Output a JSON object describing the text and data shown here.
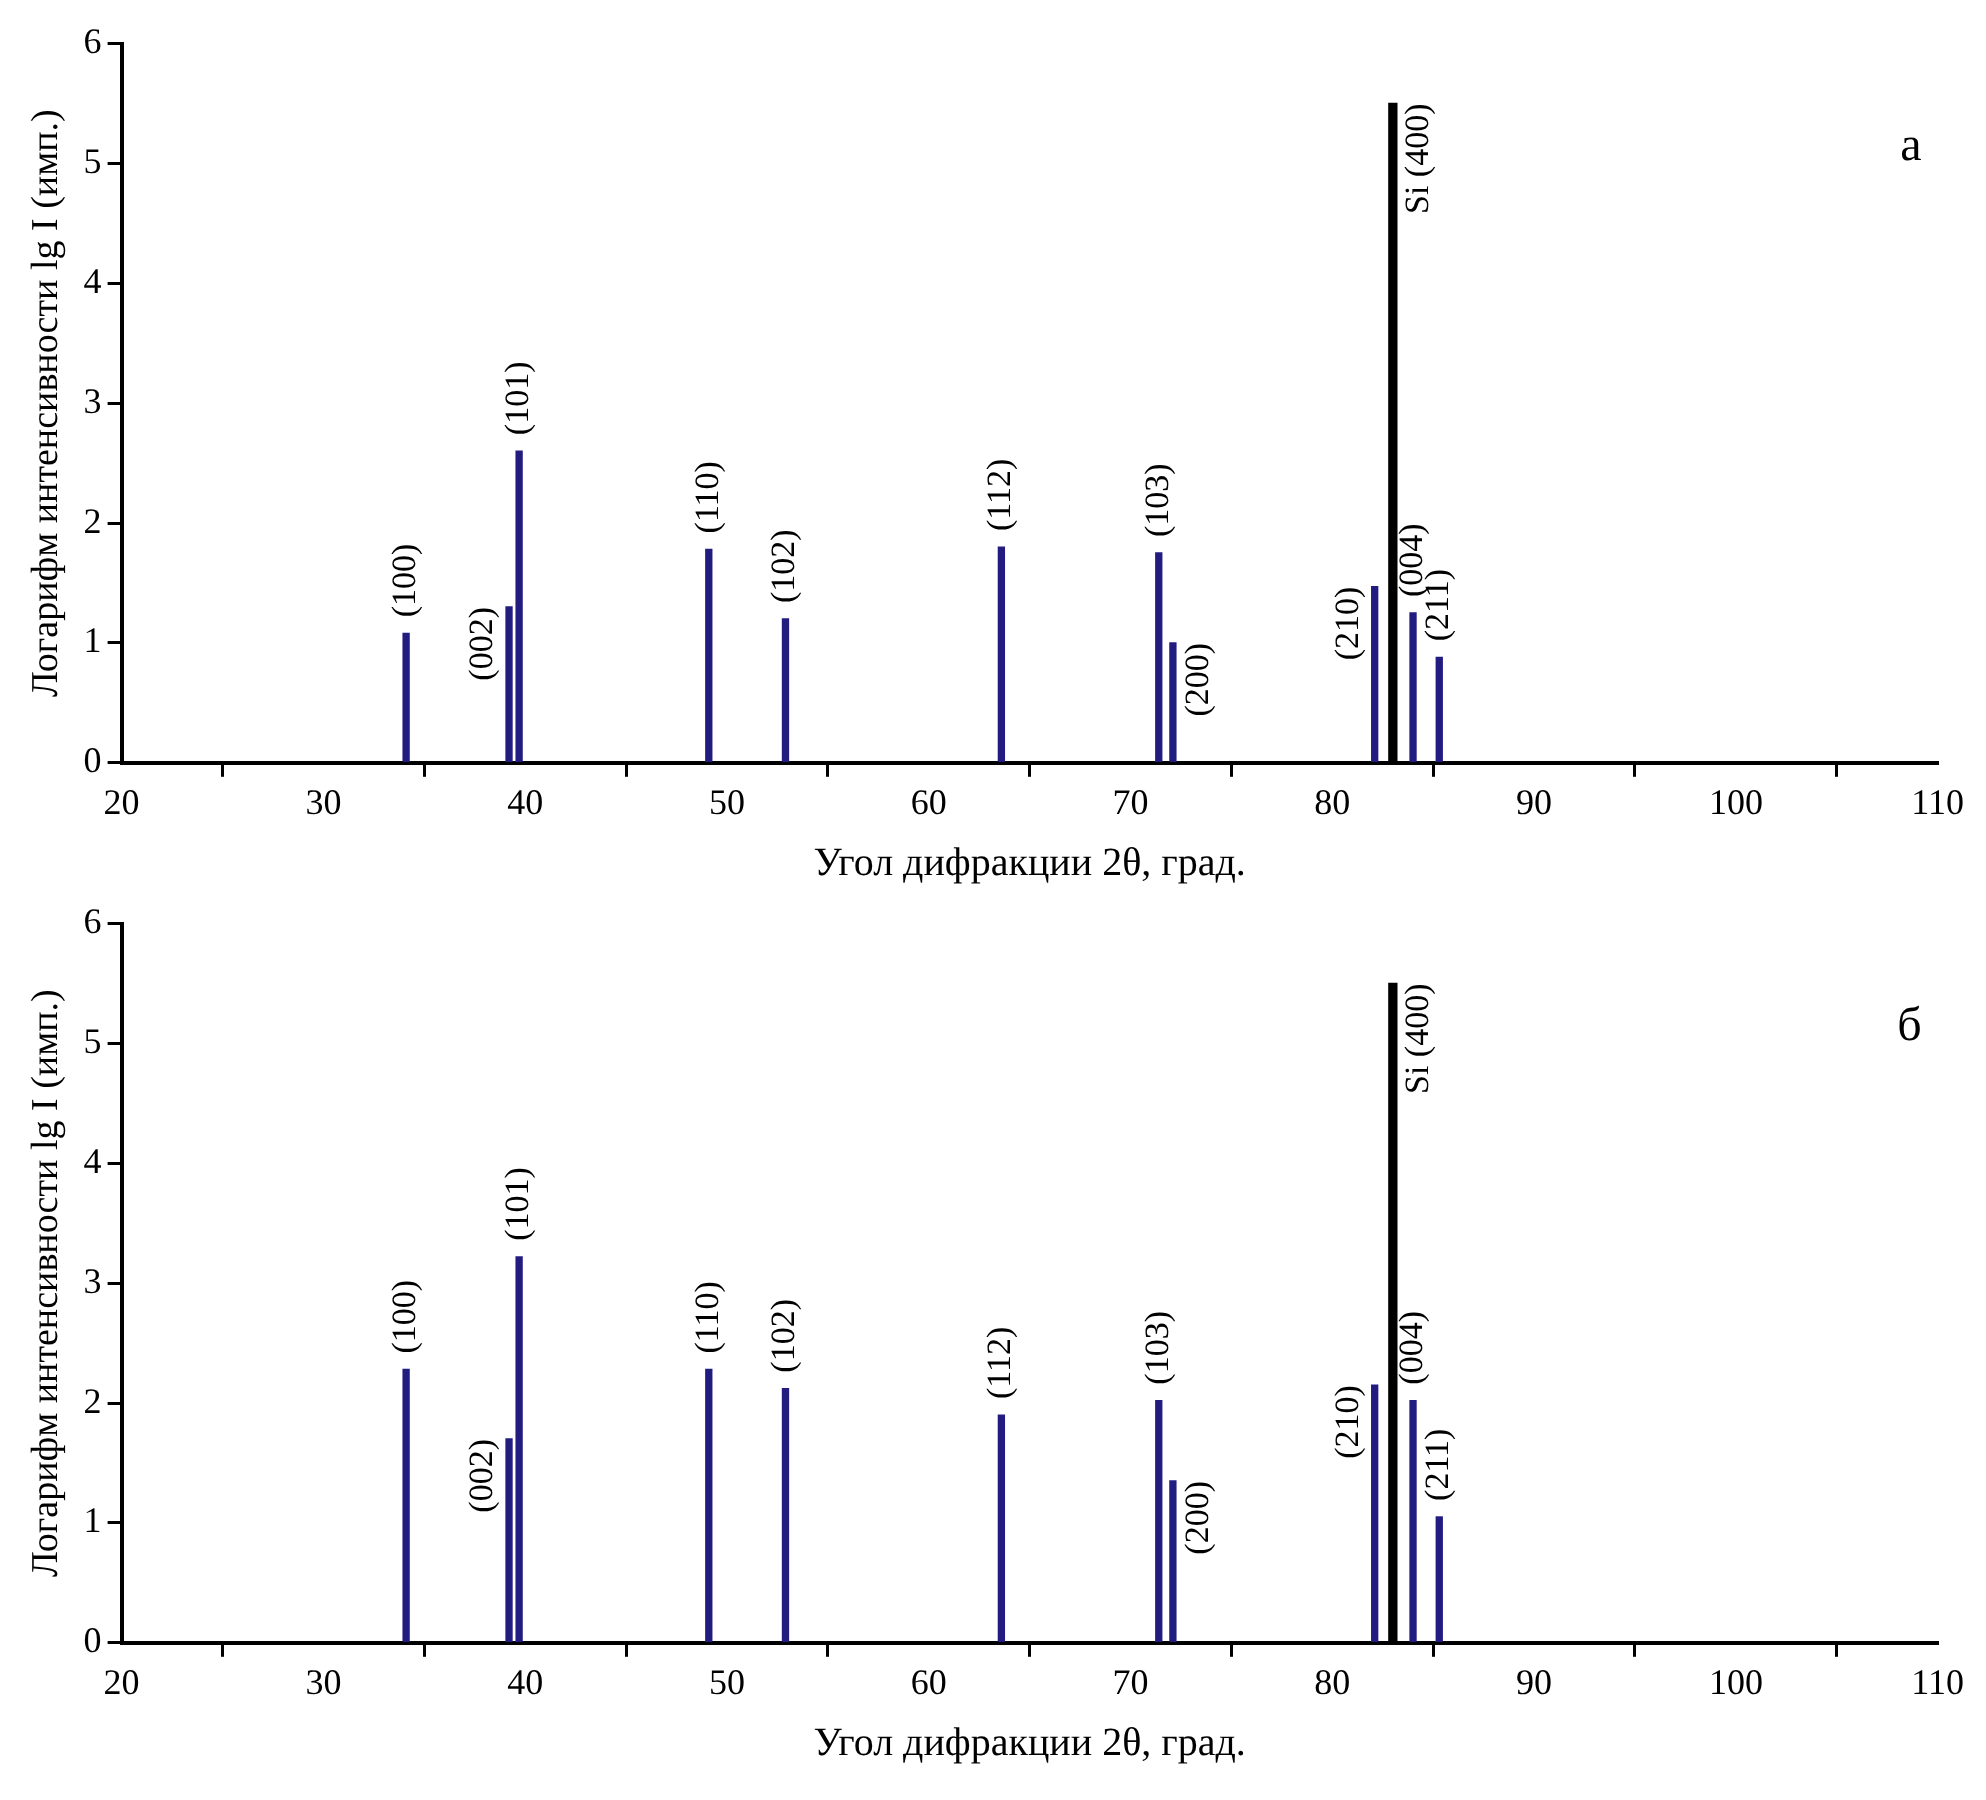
{
  "chart_data": [
    {
      "type": "bar",
      "xlabel": "Угол дифракции 2θ, град.",
      "ylabel": "Логарифм интенсивности lg I (имп.)",
      "xlim": [
        20,
        110
      ],
      "xticks": [
        20,
        30,
        40,
        50,
        60,
        70,
        80,
        90,
        100,
        110
      ],
      "ylim": [
        0,
        6
      ],
      "yticks": [
        0,
        1,
        2,
        3,
        4,
        5,
        6
      ],
      "grid": false,
      "series": [
        {
          "color": "#231c80",
          "x": [
            34.1,
            39.2,
            39.7,
            49.1,
            52.9,
            63.6,
            71.4,
            72.1,
            82.1,
            84.0,
            85.3
          ],
          "values": [
            1.08,
            1.3,
            2.6,
            1.78,
            1.2,
            1.8,
            1.75,
            1.0,
            1.47,
            1.25,
            0.88
          ]
        },
        {
          "color": "#000000",
          "x": [
            83.0
          ],
          "values": [
            5.5
          ]
        }
      ],
      "annotations": [
        "а",
        {
          "text": "(100)",
          "x": 34.1,
          "y": 1.08
        },
        {
          "text": "(002)",
          "x": 39.2,
          "y": 1.3
        },
        {
          "text": "(101)",
          "x": 39.7,
          "y": 2.6
        },
        {
          "text": "(110)",
          "x": 49.1,
          "y": 1.78
        },
        {
          "text": "(102)",
          "x": 52.9,
          "y": 1.2
        },
        {
          "text": "(112)",
          "x": 63.6,
          "y": 1.8
        },
        {
          "text": "(103)",
          "x": 71.4,
          "y": 1.75
        },
        {
          "text": "(200)",
          "x": 72.1,
          "y": 1.0
        },
        {
          "text": "(210)",
          "x": 82.1,
          "y": 1.47
        },
        {
          "text": "Si (400)",
          "x": 83.0,
          "y": 5.5
        },
        {
          "text": "(004)",
          "x": 84.0,
          "y": 1.25
        },
        {
          "text": "(211)",
          "x": 85.3,
          "y": 0.88
        }
      ]
    },
    {
      "type": "bar",
      "xlabel": "Угол дифракции 2θ, град.",
      "ylabel": "Логарифм интенсивности lg I (имп.)",
      "xlim": [
        20,
        110
      ],
      "xticks": [
        20,
        30,
        40,
        50,
        60,
        70,
        80,
        90,
        100,
        110
      ],
      "ylim": [
        0,
        6
      ],
      "yticks": [
        0,
        1,
        2,
        3,
        4,
        5,
        6
      ],
      "grid": false,
      "series": [
        {
          "color": "#231c80",
          "x": [
            34.1,
            39.2,
            39.7,
            49.1,
            52.9,
            63.6,
            71.4,
            72.1,
            82.1,
            84.0,
            85.3
          ],
          "values": [
            2.28,
            1.7,
            3.22,
            2.28,
            2.12,
            1.9,
            2.02,
            1.35,
            2.15,
            2.02,
            1.05
          ]
        },
        {
          "color": "#000000",
          "x": [
            83.0
          ],
          "values": [
            5.5
          ]
        }
      ],
      "annotations": [
        "б",
        {
          "text": "(100)",
          "x": 34.1,
          "y": 2.28
        },
        {
          "text": "(002)",
          "x": 39.2,
          "y": 1.7
        },
        {
          "text": "(101)",
          "x": 39.7,
          "y": 3.22
        },
        {
          "text": "(110)",
          "x": 49.1,
          "y": 2.28
        },
        {
          "text": "(102)",
          "x": 52.9,
          "y": 2.12
        },
        {
          "text": "(112)",
          "x": 63.6,
          "y": 1.9
        },
        {
          "text": "(103)",
          "x": 71.4,
          "y": 2.02
        },
        {
          "text": "(200)",
          "x": 72.1,
          "y": 1.35
        },
        {
          "text": "(210)",
          "x": 82.1,
          "y": 2.15
        },
        {
          "text": "Si (400)",
          "x": 83.0,
          "y": 5.5
        },
        {
          "text": "(004)",
          "x": 84.0,
          "y": 2.02
        },
        {
          "text": "(211)",
          "x": 85.3,
          "y": 1.05
        }
      ]
    }
  ]
}
